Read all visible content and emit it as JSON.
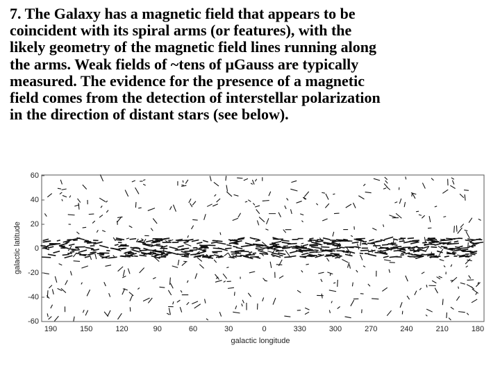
{
  "paragraph": {
    "lines": [
      "7. The Galaxy has a magnetic field that appears to be",
      "coincident with its spiral arms (or features), with the",
      "likely geometry of the magnetic field lines running along",
      "the arms. Weak fields of ~tens of μGauss are typically",
      "measured. The evidence for the presence of a magnetic",
      "field comes from the detection of interstellar polarization",
      "in the direction of distant stars (see below)."
    ]
  },
  "figure": {
    "y_axis_title": "galactic latitude",
    "x_axis_title": "galactic longitude",
    "y_ticks": [
      "60",
      "40",
      "20",
      "0",
      "-20",
      "-40",
      "-60"
    ],
    "x_ticks": [
      "190",
      "150",
      "120",
      "90",
      "60",
      "30",
      "0",
      "330",
      "300",
      "270",
      "240",
      "210",
      "180"
    ]
  }
}
